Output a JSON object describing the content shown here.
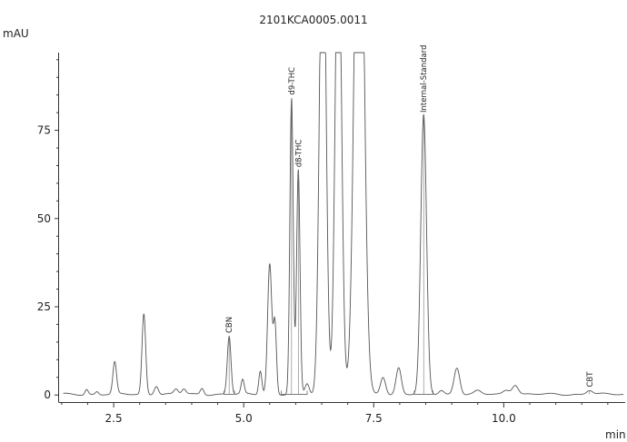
{
  "chart_data": {
    "type": "line",
    "title": "2101KCA0005.0011",
    "xlabel": "min",
    "ylabel": "mAU",
    "xlim": [
      1.45,
      12.3
    ],
    "ylim": [
      -2,
      97
    ],
    "x_ticks": [
      2.5,
      5.0,
      7.5,
      10.0
    ],
    "x_tick_labels": [
      "2.5",
      "5.0",
      "7.5",
      "10.0"
    ],
    "y_ticks": [
      0,
      25,
      50,
      75
    ],
    "y_tick_labels": [
      "0",
      "25",
      "50",
      "75"
    ],
    "grid": false,
    "line_color": "#555555",
    "baseline": 0.2,
    "peaks": [
      {
        "rt": 1.98,
        "height": 1.5,
        "width": 0.03
      },
      {
        "rt": 2.18,
        "height": 0.8,
        "width": 0.03
      },
      {
        "rt": 2.52,
        "height": 9.0,
        "width": 0.035
      },
      {
        "rt": 3.08,
        "height": 22.8,
        "width": 0.035
      },
      {
        "rt": 3.32,
        "height": 2.5,
        "width": 0.04
      },
      {
        "rt": 3.7,
        "height": 1.4,
        "width": 0.04
      },
      {
        "rt": 3.85,
        "height": 1.5,
        "width": 0.04
      },
      {
        "rt": 4.2,
        "height": 1.8,
        "width": 0.035
      },
      {
        "rt": 4.72,
        "height": 16.5,
        "width": 0.035
      },
      {
        "rt": 4.98,
        "height": 4.0,
        "width": 0.03
      },
      {
        "rt": 5.32,
        "height": 6.8,
        "width": 0.03
      },
      {
        "rt": 5.5,
        "height": 37.0,
        "width": 0.04
      },
      {
        "rt": 5.6,
        "height": 20.0,
        "width": 0.03
      },
      {
        "rt": 5.92,
        "height": 84.0,
        "width": 0.032
      },
      {
        "rt": 6.05,
        "height": 63.5,
        "width": 0.032
      },
      {
        "rt": 6.22,
        "height": 3.0,
        "width": 0.04
      },
      {
        "rt": 6.52,
        "height": 150,
        "width": 0.06
      },
      {
        "rt": 6.82,
        "height": 140,
        "width": 0.06
      },
      {
        "rt": 7.22,
        "height": 190,
        "width": 0.085
      },
      {
        "rt": 7.68,
        "height": 5.0,
        "width": 0.05
      },
      {
        "rt": 7.98,
        "height": 7.5,
        "width": 0.05
      },
      {
        "rt": 8.46,
        "height": 79.0,
        "width": 0.055
      },
      {
        "rt": 8.8,
        "height": 1.2,
        "width": 0.05
      },
      {
        "rt": 9.1,
        "height": 7.6,
        "width": 0.055
      },
      {
        "rt": 9.5,
        "height": 0.9,
        "width": 0.06
      },
      {
        "rt": 10.05,
        "height": 1.2,
        "width": 0.06
      },
      {
        "rt": 10.22,
        "height": 2.8,
        "width": 0.06
      },
      {
        "rt": 11.65,
        "height": 1.2,
        "width": 0.06
      }
    ],
    "labeled_peaks": [
      {
        "label": "CBN",
        "rt": 4.72,
        "height": 16.5
      },
      {
        "label": "d9-THC",
        "rt": 5.92,
        "height": 84.0
      },
      {
        "label": "d8-THC",
        "rt": 6.05,
        "height": 63.5
      },
      {
        "label": "Internal-Standard",
        "rt": 8.46,
        "height": 79.0
      },
      {
        "label": "CBT",
        "rt": 11.65,
        "height": 1.2
      }
    ],
    "integration_windows": [
      [
        4.62,
        4.82
      ],
      [
        5.72,
        6.22
      ],
      [
        8.28,
        8.64
      ]
    ]
  }
}
